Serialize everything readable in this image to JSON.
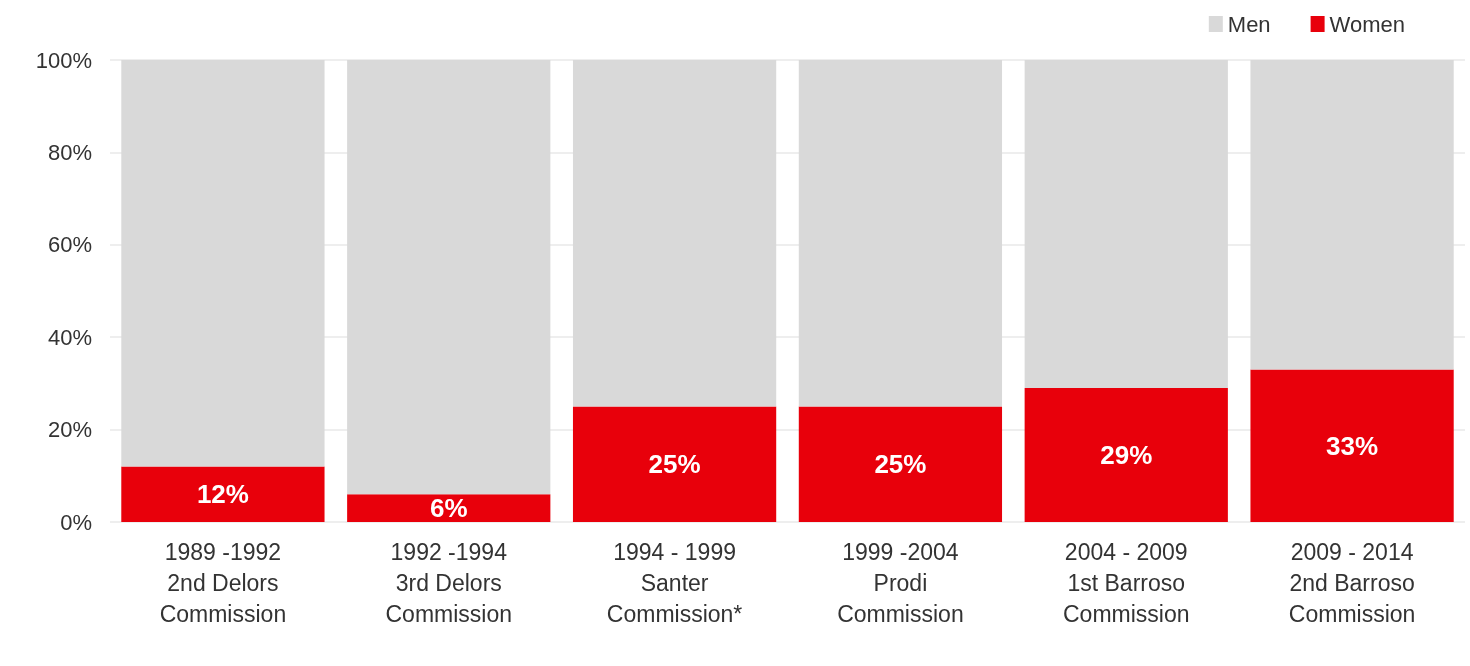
{
  "chart_data": {
    "type": "bar",
    "stacked": true,
    "categories": [
      "1989 -1992\n2nd Delors\nCommission",
      "1992 -1994\n3rd Delors\nCommission",
      "1994 - 1999\nSanter\nCommission*",
      "1999 -2004\nProdi\nCommission",
      "2004 - 2009\n1st Barroso\nCommission",
      "2009 - 2014\n2nd Barroso\nCommission"
    ],
    "series": [
      {
        "name": "Women",
        "color": "#e8000b",
        "values": [
          12,
          6,
          25,
          25,
          29,
          33
        ],
        "value_labels": [
          "12%",
          "6%",
          "25%",
          "25%",
          "29%",
          "33%"
        ]
      },
      {
        "name": "Men",
        "color": "#d9d9d9",
        "values": [
          88,
          94,
          75,
          75,
          71,
          67
        ]
      }
    ],
    "ylim": [
      0,
      100
    ],
    "yticks": [
      {
        "value": 0,
        "label": "0%"
      },
      {
        "value": 20,
        "label": "20%"
      },
      {
        "value": 40,
        "label": "40%"
      },
      {
        "value": 60,
        "label": "60%"
      },
      {
        "value": 80,
        "label": "80%"
      },
      {
        "value": 100,
        "label": "100%"
      }
    ],
    "grid": "y",
    "legend": "top right"
  }
}
